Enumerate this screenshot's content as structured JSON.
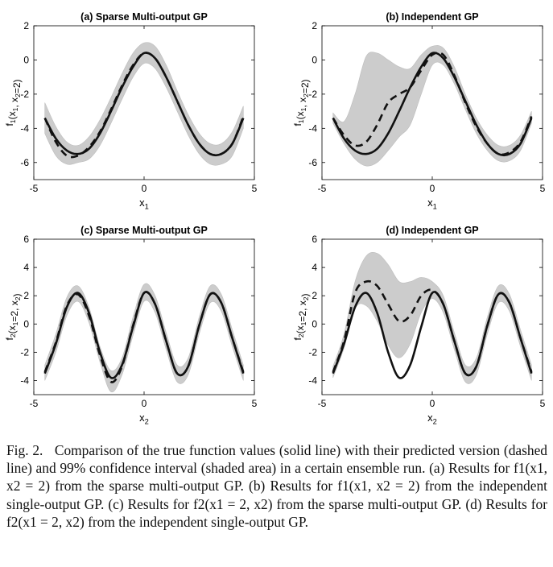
{
  "chart_data": [
    {
      "id": "a",
      "type": "line",
      "title": "(a) Sparse Multi-output GP",
      "ylabel": "f1(x1, x2=2)",
      "xlabel": "x1",
      "xlim": [
        -5,
        5
      ],
      "ylim": [
        -7,
        2
      ],
      "xticks": [
        -5,
        0,
        5
      ],
      "yticks": [
        2,
        0,
        -2,
        -4,
        -6
      ],
      "grid": false,
      "x": [
        -4.5,
        -4.0,
        -3.5,
        -3.0,
        -2.5,
        -2.0,
        -1.5,
        -1.0,
        -0.5,
        0.0,
        0.5,
        1.0,
        1.5,
        2.0,
        2.5,
        3.0,
        3.5,
        4.0,
        4.5
      ],
      "series": [
        {
          "role": "true",
          "style": "solid",
          "values": [
            -3.4,
            -4.6,
            -5.3,
            -5.5,
            -5.2,
            -4.3,
            -3.0,
            -1.6,
            -0.4,
            0.4,
            0.1,
            -1.0,
            -2.4,
            -3.8,
            -4.9,
            -5.5,
            -5.5,
            -4.9,
            -3.4
          ]
        },
        {
          "role": "predicted",
          "style": "dashed",
          "values": [
            -3.4,
            -4.8,
            -5.6,
            -5.6,
            -5.1,
            -4.2,
            -2.9,
            -1.5,
            -0.3,
            0.4,
            0.1,
            -1.0,
            -2.4,
            -3.8,
            -4.9,
            -5.5,
            -5.5,
            -4.9,
            -3.3
          ]
        },
        {
          "role": "ci_lower",
          "values": [
            -4.3,
            -5.6,
            -6.1,
            -6.0,
            -5.8,
            -5.0,
            -3.7,
            -2.3,
            -1.0,
            -0.2,
            -0.5,
            -1.6,
            -3.0,
            -4.4,
            -5.5,
            -6.1,
            -6.1,
            -5.6,
            -4.0
          ]
        },
        {
          "role": "ci_upper",
          "values": [
            -2.5,
            -3.9,
            -4.8,
            -5.0,
            -4.5,
            -3.5,
            -2.2,
            -0.8,
            0.4,
            1.0,
            0.8,
            -0.3,
            -1.8,
            -3.2,
            -4.3,
            -4.9,
            -4.9,
            -4.2,
            -2.7
          ]
        }
      ]
    },
    {
      "id": "b",
      "type": "line",
      "title": "(b) Independent GP",
      "ylabel": "f1(x1, x2=2)",
      "xlabel": "x1",
      "xlim": [
        -5,
        5
      ],
      "ylim": [
        -7,
        2
      ],
      "xticks": [
        -5,
        0,
        5
      ],
      "yticks": [
        2,
        0,
        -2,
        -4,
        -6
      ],
      "grid": false,
      "x": [
        -4.5,
        -4.0,
        -3.5,
        -3.0,
        -2.5,
        -2.0,
        -1.5,
        -1.0,
        -0.5,
        0.0,
        0.5,
        1.0,
        1.5,
        2.0,
        2.5,
        3.0,
        3.5,
        4.0,
        4.5
      ],
      "series": [
        {
          "role": "true",
          "style": "solid",
          "values": [
            -3.4,
            -4.6,
            -5.3,
            -5.5,
            -5.2,
            -4.3,
            -3.0,
            -1.6,
            -0.4,
            0.4,
            0.1,
            -1.0,
            -2.4,
            -3.8,
            -4.9,
            -5.5,
            -5.5,
            -4.9,
            -3.4
          ]
        },
        {
          "role": "predicted",
          "style": "dashed",
          "values": [
            -3.4,
            -4.4,
            -5.0,
            -4.8,
            -3.8,
            -2.5,
            -2.0,
            -1.6,
            -0.6,
            0.3,
            0.3,
            -0.9,
            -2.5,
            -3.9,
            -4.9,
            -5.5,
            -5.4,
            -4.8,
            -3.3
          ]
        },
        {
          "role": "ci_lower",
          "values": [
            -3.7,
            -4.9,
            -5.8,
            -6.2,
            -6.0,
            -5.3,
            -4.5,
            -3.8,
            -2.0,
            -0.3,
            -0.3,
            -1.4,
            -2.9,
            -4.3,
            -5.3,
            -5.9,
            -5.9,
            -5.3,
            -3.7
          ]
        },
        {
          "role": "ci_upper",
          "values": [
            -3.1,
            -3.6,
            -2.0,
            0.2,
            0.4,
            0.0,
            -0.4,
            -0.5,
            0.3,
            0.8,
            0.7,
            -0.4,
            -2.0,
            -3.4,
            -4.4,
            -5.0,
            -5.0,
            -4.4,
            -3.0
          ]
        }
      ]
    },
    {
      "id": "c",
      "type": "line",
      "title": "(c) Sparse Multi-output GP",
      "ylabel": "f2(x1=2, x2)",
      "xlabel": "x2",
      "xlim": [
        -5,
        5
      ],
      "ylim": [
        -5,
        6
      ],
      "xticks": [
        -5,
        0,
        5
      ],
      "yticks": [
        6,
        4,
        2,
        0,
        -2,
        -4
      ],
      "grid": false,
      "x": [
        -4.5,
        -4.0,
        -3.5,
        -3.0,
        -2.5,
        -2.0,
        -1.5,
        -1.0,
        -0.5,
        0.0,
        0.5,
        1.0,
        1.5,
        2.0,
        2.5,
        3.0,
        3.5,
        4.0,
        4.5
      ],
      "series": [
        {
          "role": "true",
          "style": "solid",
          "values": [
            -3.5,
            -1.4,
            1.2,
            2.2,
            0.8,
            -2.0,
            -3.8,
            -2.9,
            -0.2,
            2.2,
            1.4,
            -1.2,
            -3.5,
            -3.0,
            -0.1,
            2.1,
            1.5,
            -1.0,
            -3.5
          ]
        },
        {
          "role": "predicted",
          "style": "dashed",
          "values": [
            -3.4,
            -1.3,
            1.3,
            2.1,
            0.6,
            -2.2,
            -4.1,
            -3.0,
            -0.1,
            2.2,
            1.4,
            -1.2,
            -3.5,
            -3.0,
            -0.1,
            2.1,
            1.5,
            -1.0,
            -3.4
          ]
        },
        {
          "role": "ci_lower",
          "values": [
            -4.0,
            -2.0,
            0.6,
            1.6,
            0.1,
            -2.7,
            -4.8,
            -3.6,
            -0.8,
            1.6,
            0.8,
            -1.8,
            -4.1,
            -3.6,
            -0.7,
            1.5,
            0.9,
            -1.6,
            -4.0
          ]
        },
        {
          "role": "ci_upper",
          "values": [
            -2.9,
            -0.7,
            1.9,
            2.7,
            1.2,
            -1.6,
            -3.3,
            -2.4,
            0.5,
            2.8,
            2.0,
            -0.6,
            -2.9,
            -2.4,
            0.5,
            2.7,
            2.1,
            -0.4,
            -2.9
          ]
        }
      ]
    },
    {
      "id": "d",
      "type": "line",
      "title": "(d) Independent GP",
      "ylabel": "f2(x1=2, x2)",
      "xlabel": "x2",
      "xlim": [
        -5,
        5
      ],
      "ylim": [
        -5,
        6
      ],
      "xticks": [
        -5,
        0,
        5
      ],
      "yticks": [
        6,
        4,
        2,
        0,
        -2,
        -4
      ],
      "grid": false,
      "x": [
        -4.5,
        -4.0,
        -3.5,
        -3.0,
        -2.5,
        -2.0,
        -1.5,
        -1.0,
        -0.5,
        0.0,
        0.5,
        1.0,
        1.5,
        2.0,
        2.5,
        3.0,
        3.5,
        4.0,
        4.5
      ],
      "series": [
        {
          "role": "true",
          "style": "solid",
          "values": [
            -3.5,
            -1.4,
            1.2,
            2.2,
            0.8,
            -2.0,
            -3.8,
            -2.9,
            -0.2,
            2.2,
            1.4,
            -1.2,
            -3.5,
            -3.0,
            -0.1,
            2.1,
            1.5,
            -1.0,
            -3.5
          ]
        },
        {
          "role": "predicted",
          "style": "dashed",
          "values": [
            -3.4,
            -1.2,
            2.2,
            3.0,
            2.7,
            1.4,
            0.2,
            0.6,
            2.0,
            2.4,
            1.4,
            -1.2,
            -3.5,
            -3.0,
            -0.1,
            2.1,
            1.5,
            -1.0,
            -3.4
          ]
        },
        {
          "role": "ci_lower",
          "values": [
            -3.8,
            -1.7,
            1.1,
            1.3,
            0.2,
            -1.5,
            -2.4,
            -1.4,
            0.8,
            1.8,
            0.8,
            -1.8,
            -4.1,
            -3.6,
            -0.7,
            1.5,
            0.9,
            -1.6,
            -4.0
          ]
        },
        {
          "role": "ci_upper",
          "values": [
            -3.0,
            -0.7,
            3.0,
            4.8,
            5.0,
            4.2,
            3.0,
            3.0,
            3.3,
            3.0,
            2.0,
            -0.6,
            -2.9,
            -2.4,
            0.5,
            2.7,
            2.1,
            -0.4,
            -2.9
          ]
        }
      ]
    }
  ],
  "caption": {
    "label": "Fig. 2.",
    "text": "Comparison of the true function values (solid line) with their predicted version (dashed line) and 99% confidence interval (shaded area) in a certain ensemble run. (a) Results for f1(x1, x2 = 2) from the sparse multi-output GP. (b) Results for f1(x1, x2 = 2) from the independent single-output GP. (c) Results for f2(x1 = 2, x2) from the sparse multi-output GP. (d) Results for f2(x1 = 2, x2) from the independent single-output GP."
  },
  "colors": {
    "true_line": "#111111",
    "predicted_line": "#111111",
    "ci_fill": "#cccccc",
    "axes": "#000000"
  }
}
